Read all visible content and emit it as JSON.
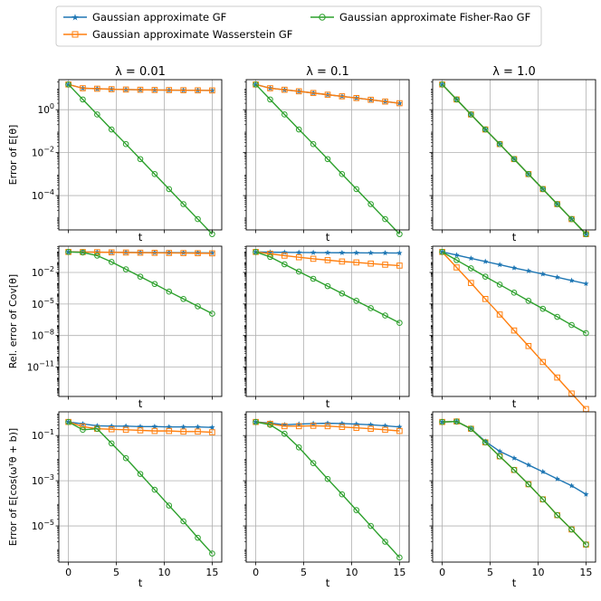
{
  "legend": [
    {
      "label": "Gaussian approximate GF",
      "color": "#1f77b4",
      "marker": "star"
    },
    {
      "label": "Gaussian approximate Wasserstein GF",
      "color": "#ff7f0e",
      "marker": "square"
    },
    {
      "label": "Gaussian approximate Fisher-Rao GF",
      "color": "#2ca02c",
      "marker": "circle"
    }
  ],
  "column_titles": [
    "λ = 0.01",
    "λ = 0.1",
    "λ = 1.0"
  ],
  "row_ylabels": [
    "Error of E[θ]",
    "Rel. error of Cov[θ]",
    "Error of E[cos(ωᵀθ + b)]"
  ],
  "xlabel": "t",
  "chart_data": {
    "type": "line",
    "xlim": [
      -1,
      16
    ],
    "x_ticks": [
      0,
      5,
      10,
      15
    ],
    "x": [
      0,
      1.5,
      3,
      4.5,
      6,
      7.5,
      9,
      10.5,
      12,
      13.5,
      15
    ],
    "rows": [
      {
        "ylabel": "Error of E[θ]",
        "ylog": [
          -5.6,
          1.4
        ],
        "y_ticks": [
          {
            "exp": 0,
            "label": "10^0"
          },
          {
            "exp": -2,
            "label": "10^-2"
          },
          {
            "exp": -4,
            "label": "10^-4"
          }
        ],
        "panels": [
          {
            "title": "λ = 0.01",
            "series": [
              {
                "name": "Gaussian approximate GF",
                "values": [
                  15,
                  10,
                  9.5,
                  9,
                  8.7,
                  8.5,
                  8.3,
                  8.2,
                  8.1,
                  8.0,
                  7.9
                ]
              },
              {
                "name": "Gaussian approximate Wasserstein GF",
                "values": [
                  15,
                  10,
                  9.5,
                  9,
                  8.7,
                  8.5,
                  8.3,
                  8.2,
                  8.1,
                  8.0,
                  7.9
                ]
              },
              {
                "name": "Gaussian approximate Fisher-Rao GF",
                "values": [
                  15,
                  3,
                  0.6,
                  0.12,
                  0.025,
                  0.005,
                  0.001,
                  0.0002,
                  4e-05,
                  8e-06,
                  1.6e-06
                ]
              }
            ]
          },
          {
            "title": "λ = 0.1",
            "series": [
              {
                "name": "Gaussian approximate GF",
                "values": [
                  15,
                  10,
                  8.5,
                  7.2,
                  6.0,
                  5.0,
                  4.2,
                  3.5,
                  2.9,
                  2.4,
                  2.0
                ]
              },
              {
                "name": "Gaussian approximate Wasserstein GF",
                "values": [
                  15,
                  10,
                  8.5,
                  7.2,
                  6.0,
                  5.0,
                  4.2,
                  3.5,
                  2.9,
                  2.4,
                  2.0
                ]
              },
              {
                "name": "Gaussian approximate Fisher-Rao GF",
                "values": [
                  15,
                  3,
                  0.6,
                  0.12,
                  0.025,
                  0.005,
                  0.001,
                  0.0002,
                  4e-05,
                  8e-06,
                  1.6e-06
                ]
              }
            ]
          },
          {
            "title": "λ = 1.0",
            "series": [
              {
                "name": "Gaussian approximate GF",
                "values": [
                  15,
                  3,
                  0.6,
                  0.12,
                  0.025,
                  0.005,
                  0.001,
                  0.0002,
                  4e-05,
                  8e-06,
                  1.6e-06
                ]
              },
              {
                "name": "Gaussian approximate Wasserstein GF",
                "values": [
                  15,
                  3,
                  0.6,
                  0.12,
                  0.025,
                  0.005,
                  0.001,
                  0.0002,
                  4e-05,
                  8e-06,
                  1.6e-06
                ]
              },
              {
                "name": "Gaussian approximate Fisher-Rao GF",
                "values": [
                  15,
                  3,
                  0.6,
                  0.12,
                  0.025,
                  0.005,
                  0.001,
                  0.0002,
                  4e-05,
                  8e-06,
                  1.6e-06
                ]
              }
            ]
          }
        ]
      },
      {
        "ylabel": "Rel. error of Cov[θ]",
        "ylog": [
          -13.8,
          0.5
        ],
        "y_ticks": [
          {
            "exp": -2,
            "label": "10^-2"
          },
          {
            "exp": -5,
            "label": "10^-5"
          },
          {
            "exp": -8,
            "label": "10^-8"
          },
          {
            "exp": -11,
            "label": "10^-11"
          }
        ],
        "panels": [
          {
            "title": "λ = 0.01",
            "series": [
              {
                "name": "Gaussian approximate GF",
                "values": [
                  0.9,
                  0.88,
                  0.86,
                  0.84,
                  0.82,
                  0.8,
                  0.78,
                  0.77,
                  0.75,
                  0.74,
                  0.73
                ]
              },
              {
                "name": "Gaussian approximate Wasserstein GF",
                "values": [
                  0.9,
                  0.88,
                  0.85,
                  0.82,
                  0.79,
                  0.76,
                  0.74,
                  0.72,
                  0.7,
                  0.68,
                  0.66
                ]
              },
              {
                "name": "Gaussian approximate Fisher-Rao GF",
                "values": [
                  0.9,
                  0.8,
                  0.4,
                  0.1,
                  0.02,
                  0.004,
                  0.0008,
                  0.00015,
                  3e-05,
                  6e-06,
                  1.2e-06
                ]
              }
            ]
          },
          {
            "title": "λ = 0.1",
            "series": [
              {
                "name": "Gaussian approximate GF",
                "values": [
                  0.9,
                  0.85,
                  0.82,
                  0.8,
                  0.78,
                  0.76,
                  0.75,
                  0.74,
                  0.73,
                  0.72,
                  0.71
                ]
              },
              {
                "name": "Gaussian approximate Wasserstein GF",
                "values": [
                  0.9,
                  0.6,
                  0.4,
                  0.28,
                  0.2,
                  0.15,
                  0.11,
                  0.09,
                  0.07,
                  0.055,
                  0.045
                ]
              },
              {
                "name": "Gaussian approximate Fisher-Rao GF",
                "values": [
                  0.9,
                  0.3,
                  0.06,
                  0.012,
                  0.0025,
                  0.0005,
                  0.0001,
                  2e-05,
                  4e-06,
                  8e-07,
                  1.6e-07
                ]
              }
            ]
          },
          {
            "title": "λ = 1.0",
            "series": [
              {
                "name": "Gaussian approximate GF",
                "values": [
                  0.9,
                  0.45,
                  0.22,
                  0.11,
                  0.055,
                  0.027,
                  0.014,
                  0.007,
                  0.0035,
                  0.0017,
                  0.00085
                ]
              },
              {
                "name": "Gaussian approximate Wasserstein GF",
                "values": [
                  0.9,
                  0.03,
                  0.001,
                  3e-05,
                  1e-06,
                  3e-08,
                  1e-09,
                  3e-11,
                  1e-12,
                  3e-14,
                  1e-15
                ]
              },
              {
                "name": "Gaussian approximate Fisher-Rao GF",
                "values": [
                  0.9,
                  0.15,
                  0.025,
                  0.004,
                  0.0007,
                  0.00012,
                  2e-05,
                  3.5e-06,
                  6e-07,
                  1e-07,
                  1.7e-08
                ]
              }
            ]
          }
        ]
      },
      {
        "ylabel": "Error of E[cos(ωᵀθ + b)]",
        "ylog": [
          -6.6,
          0.05
        ],
        "y_ticks": [
          {
            "exp": -1,
            "label": "10^-1"
          },
          {
            "exp": -3,
            "label": "10^-3"
          },
          {
            "exp": -5,
            "label": "10^-5"
          }
        ],
        "panels": [
          {
            "title": "λ = 0.01",
            "series": [
              {
                "name": "Gaussian approximate GF",
                "values": [
                  0.4,
                  0.33,
                  0.27,
                  0.26,
                  0.26,
                  0.25,
                  0.25,
                  0.24,
                  0.24,
                  0.24,
                  0.23
                ]
              },
              {
                "name": "Gaussian approximate Wasserstein GF",
                "values": [
                  0.4,
                  0.25,
                  0.2,
                  0.19,
                  0.18,
                  0.17,
                  0.16,
                  0.16,
                  0.15,
                  0.15,
                  0.14
                ]
              },
              {
                "name": "Gaussian approximate Fisher-Rao GF",
                "values": [
                  0.4,
                  0.18,
                  0.2,
                  0.045,
                  0.01,
                  0.002,
                  0.0004,
                  8e-05,
                  1.6e-05,
                  3e-06,
                  6e-07
                ]
              }
            ]
          },
          {
            "title": "λ = 0.1",
            "series": [
              {
                "name": "Gaussian approximate GF",
                "values": [
                  0.4,
                  0.36,
                  0.3,
                  0.32,
                  0.34,
                  0.35,
                  0.34,
                  0.32,
                  0.3,
                  0.27,
                  0.24
                ]
              },
              {
                "name": "Gaussian approximate Wasserstein GF",
                "values": [
                  0.4,
                  0.33,
                  0.26,
                  0.26,
                  0.27,
                  0.26,
                  0.24,
                  0.22,
                  0.2,
                  0.18,
                  0.16
                ]
              },
              {
                "name": "Gaussian approximate Fisher-Rao GF",
                "values": [
                  0.4,
                  0.3,
                  0.12,
                  0.03,
                  0.006,
                  0.0012,
                  0.00025,
                  5e-05,
                  1e-05,
                  2e-06,
                  4e-07
                ]
              }
            ]
          },
          {
            "title": "λ = 1.0",
            "series": [
              {
                "name": "Gaussian approximate GF",
                "values": [
                  0.4,
                  0.42,
                  0.2,
                  0.055,
                  0.02,
                  0.01,
                  0.005,
                  0.0025,
                  0.0012,
                  0.0006,
                  0.00025
                ]
              },
              {
                "name": "Gaussian approximate Wasserstein GF",
                "values": [
                  0.4,
                  0.42,
                  0.2,
                  0.05,
                  0.012,
                  0.003,
                  0.0007,
                  0.00015,
                  3e-05,
                  7e-06,
                  1.5e-06
                ]
              },
              {
                "name": "Gaussian approximate Fisher-Rao GF",
                "values": [
                  0.4,
                  0.42,
                  0.2,
                  0.05,
                  0.012,
                  0.003,
                  0.0007,
                  0.00015,
                  3e-05,
                  7e-06,
                  1.5e-06
                ]
              }
            ]
          }
        ]
      }
    ]
  }
}
